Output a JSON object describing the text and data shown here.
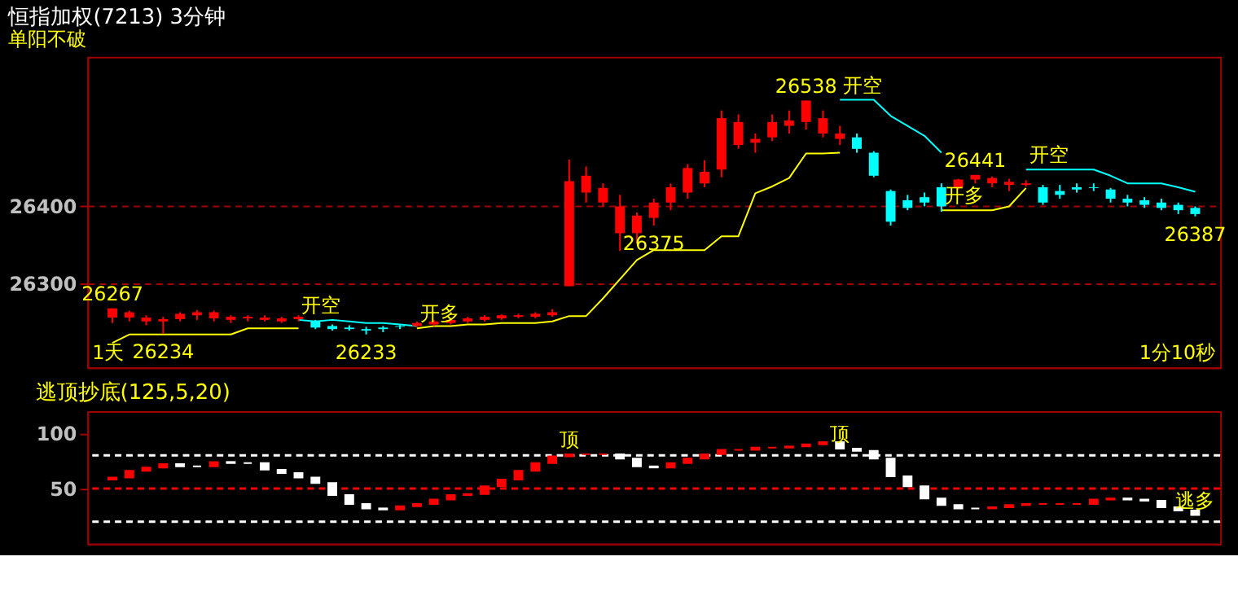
{
  "chart_data": [
    {
      "type": "candlestick",
      "title": "恒指加权(7213)  3分钟",
      "subtitle": "单阳不破",
      "categories": [
        null,
        null,
        null,
        null,
        null,
        null,
        null,
        null,
        null,
        null,
        null,
        null,
        null,
        null,
        null,
        null,
        null,
        null,
        null,
        null,
        null,
        null,
        null,
        null,
        null,
        null,
        null,
        null,
        null,
        null,
        null,
        null,
        null,
        null,
        null,
        null,
        null,
        null,
        null,
        null,
        null,
        null,
        null,
        null,
        null,
        null,
        null,
        null,
        null,
        null,
        null,
        null,
        null,
        null,
        null,
        null,
        null,
        null,
        null,
        null,
        null,
        null,
        null,
        null,
        null
      ],
      "ylim": [
        26190,
        26595
      ],
      "yticks": [
        26300,
        26400
      ],
      "grid": "y",
      "tick_labels": "y",
      "ohlc": [
        [
          26255,
          26267,
          26248,
          26267
        ],
        [
          26255,
          26264,
          26250,
          26262
        ],
        [
          26250,
          26258,
          26245,
          26255
        ],
        [
          26250,
          26256,
          26234,
          26253
        ],
        [
          26253,
          26262,
          26250,
          26260
        ],
        [
          26258,
          26265,
          26252,
          26262
        ],
        [
          26254,
          26264,
          26250,
          26262
        ],
        [
          26252,
          26258,
          26248,
          26256
        ],
        [
          26254,
          26258,
          26250,
          26256
        ],
        [
          26252,
          26258,
          26250,
          26255
        ],
        [
          26250,
          26256,
          26248,
          26254
        ],
        [
          26253,
          26258,
          26250,
          26256
        ],
        [
          26250,
          26252,
          26240,
          26242
        ],
        [
          26244,
          26246,
          26238,
          26240
        ],
        [
          26242,
          26245,
          26238,
          26240
        ],
        [
          26240,
          26243,
          26233,
          26238
        ],
        [
          26242,
          26244,
          26236,
          26240
        ],
        [
          26244,
          26246,
          26240,
          26243
        ],
        [
          26244,
          26250,
          26242,
          26248
        ],
        [
          26246,
          26252,
          26244,
          26250
        ],
        [
          26248,
          26254,
          26246,
          26252
        ],
        [
          26250,
          26256,
          26248,
          26254
        ],
        [
          26252,
          26258,
          26250,
          26256
        ],
        [
          26254,
          26259,
          26252,
          26258
        ],
        [
          26256,
          26260,
          26254,
          26258
        ],
        [
          26256,
          26262,
          26254,
          26260
        ],
        [
          26258,
          26266,
          26256,
          26262
        ],
        [
          26296,
          26461,
          26296,
          26433
        ],
        [
          26418,
          26452,
          26405,
          26440
        ],
        [
          26405,
          26430,
          26400,
          26424
        ],
        [
          26365,
          26415,
          26342,
          26400
        ],
        [
          26365,
          26392,
          26352,
          26388
        ],
        [
          26385,
          26410,
          26375,
          26405
        ],
        [
          26405,
          26430,
          26395,
          26425
        ],
        [
          26418,
          26455,
          26410,
          26450
        ],
        [
          26430,
          26460,
          26425,
          26445
        ],
        [
          26448,
          26525,
          26438,
          26515
        ],
        [
          26480,
          26520,
          26475,
          26510
        ],
        [
          26483,
          26495,
          26470,
          26488
        ],
        [
          26490,
          26520,
          26485,
          26510
        ],
        [
          26505,
          26525,
          26495,
          26512
        ],
        [
          26510,
          26538,
          26500,
          26538
        ],
        [
          26495,
          26525,
          26490,
          26515
        ],
        [
          26488,
          26505,
          26480,
          26495
        ],
        [
          26490,
          26495,
          26470,
          26475
        ],
        [
          26470,
          26472,
          26438,
          26440
        ],
        [
          26420,
          26422,
          26375,
          26380
        ],
        [
          26408,
          26415,
          26395,
          26398
        ],
        [
          26412,
          26418,
          26400,
          26405
        ],
        [
          26425,
          26430,
          26393,
          26400
        ],
        [
          26425,
          26436,
          26422,
          26435
        ],
        [
          26435,
          26441,
          26430,
          26441
        ],
        [
          26430,
          26439,
          26425,
          26437
        ],
        [
          26428,
          26436,
          26420,
          26432
        ],
        [
          26428,
          26434,
          26426,
          26430
        ],
        [
          26425,
          26428,
          26402,
          26405
        ],
        [
          26420,
          26428,
          26410,
          26415
        ],
        [
          26425,
          26430,
          26418,
          26422
        ],
        [
          26425,
          26430,
          26420,
          26424
        ],
        [
          26422,
          26424,
          26405,
          26410
        ],
        [
          26410,
          26415,
          26400,
          26405
        ],
        [
          26408,
          26412,
          26398,
          26402
        ],
        [
          26405,
          26410,
          26395,
          26398
        ],
        [
          26402,
          26405,
          26390,
          26395
        ],
        [
          26398,
          26400,
          26387,
          26390
        ]
      ],
      "colors": [
        "#ff0000",
        "#ff0000",
        "#ff0000",
        "#ff0000",
        "#ff0000",
        "#ff0000",
        "#ff0000",
        "#ff0000",
        "#ff0000",
        "#ff0000",
        "#ff0000",
        "#ff0000",
        "#00ffff",
        "#00ffff",
        "#00ffff",
        "#00ffff",
        "#00ffff",
        "#00ffff",
        "#ff0000",
        "#ff0000",
        "#ff0000",
        "#ff0000",
        "#ff0000",
        "#ff0000",
        "#ff0000",
        "#ff0000",
        "#ff0000",
        "#ff0000",
        "#ff0000",
        "#ff0000",
        "#ff0000",
        "#ff0000",
        "#ff0000",
        "#ff0000",
        "#ff0000",
        "#ff0000",
        "#ff0000",
        "#ff0000",
        "#ff0000",
        "#ff0000",
        "#ff0000",
        "#ff0000",
        "#ff0000",
        "#ff0000",
        "#00ffff",
        "#00ffff",
        "#00ffff",
        "#00ffff",
        "#00ffff",
        "#00ffff",
        "#ff0000",
        "#ff0000",
        "#ff0000",
        "#ff0000",
        "#ff0000",
        "#00ffff",
        "#00ffff",
        "#00ffff",
        "#00ffff",
        "#00ffff",
        "#00ffff",
        "#00ffff",
        "#00ffff",
        "#00ffff",
        "#00ffff"
      ],
      "series": [
        {
          "type": "line",
          "color": "#ffff00",
          "values": [
            26222,
            26233,
            26233,
            26233,
            26233,
            26233,
            26233,
            26233,
            26241,
            26241,
            26241,
            26241,
            null,
            null,
            null,
            null,
            null,
            null,
            26241,
            26244,
            26244,
            26246,
            26246,
            26248,
            26248,
            26248,
            26250,
            26257,
            26257,
            26280,
            26305,
            26330,
            26343,
            26343,
            26343,
            26343,
            26361,
            26361,
            26417,
            26426,
            26437,
            26469,
            26469,
            26470,
            null,
            null,
            null,
            null,
            null,
            26395,
            26395,
            26395,
            26395,
            26400,
            26424,
            null,
            null,
            null,
            null,
            null,
            null,
            null,
            null,
            null,
            null
          ]
        },
        {
          "type": "line",
          "color": "#00ffff",
          "values": [
            null,
            null,
            null,
            null,
            null,
            null,
            null,
            null,
            null,
            null,
            null,
            26252,
            26250,
            26252,
            26250,
            26248,
            26248,
            26246,
            26244,
            null,
            null,
            null,
            null,
            null,
            null,
            null,
            null,
            null,
            null,
            null,
            null,
            null,
            null,
            null,
            null,
            null,
            null,
            null,
            null,
            null,
            null,
            null,
            null,
            26539,
            26539,
            26539,
            26518,
            26505,
            26492,
            26470,
            null,
            null,
            null,
            null,
            26448,
            26448,
            26448,
            26448,
            26448,
            26440,
            26430,
            26430,
            26430,
            26425,
            26419
          ]
        }
      ],
      "annotations": [
        {
          "text": "26538",
          "y": 26538
        },
        {
          "text": "开空",
          "y": 26539
        },
        {
          "text": "26441",
          "y": 26441
        },
        {
          "text": "26375",
          "y": 26375
        },
        {
          "text": "26387",
          "y": 26387
        },
        {
          "text": "26267",
          "y": 26267
        },
        {
          "text": "26234",
          "y": 26234
        },
        {
          "text": "26233",
          "y": 26233
        },
        {
          "text": "开空",
          "y": 26252
        },
        {
          "text": "开多",
          "y": 26241
        },
        {
          "text": "开多",
          "y": 26395
        },
        {
          "text": "开空",
          "y": 26448
        },
        "1天",
        "1分10秒"
      ]
    },
    {
      "type": "bar",
      "title": "逃顶抄底(125,5,20)",
      "categories": [
        null,
        null,
        null,
        null,
        null,
        null,
        null,
        null,
        null,
        null,
        null,
        null,
        null,
        null,
        null,
        null,
        null,
        null,
        null,
        null,
        null,
        null,
        null,
        null,
        null,
        null,
        null,
        null,
        null,
        null,
        null,
        null,
        null,
        null,
        null,
        null,
        null,
        null,
        null,
        null,
        null,
        null,
        null,
        null,
        null,
        null,
        null,
        null,
        null,
        null,
        null,
        null,
        null,
        null,
        null,
        null,
        null,
        null,
        null,
        null,
        null,
        null,
        null,
        null,
        null
      ],
      "ylim": [
        0,
        120
      ],
      "yticks": [
        50,
        100
      ],
      "tick_labels": "y",
      "base": [
        58,
        60,
        66,
        69,
        72,
        70,
        70,
        74,
        73,
        73,
        67,
        64,
        60,
        55,
        44,
        36,
        32,
        31,
        34,
        36,
        40,
        44,
        45,
        52,
        58,
        66,
        73,
        79,
        81,
        81,
        81,
        77,
        70,
        69,
        73,
        77,
        81,
        85,
        85,
        87,
        87,
        88,
        90,
        92,
        86,
        84,
        77,
        61,
        52,
        41,
        35,
        32,
        32,
        33,
        35,
        36,
        36,
        36,
        36,
        40,
        41,
        40,
        39,
        33,
        30
      ],
      "values": [
        2,
        6,
        3,
        3,
        -2,
        0,
        4,
        -1,
        0,
        -6,
        -3,
        -4,
        -5,
        -11,
        -8,
        -4,
        -1,
        3,
        2,
        4,
        4,
        1,
        7,
        6,
        8,
        7,
        6,
        2,
        0,
        0,
        -4,
        -7,
        -1,
        4,
        4,
        4,
        4,
        0,
        2,
        0,
        1,
        2,
        2,
        -6,
        -2,
        -7,
        -16,
        -9,
        -11,
        -6,
        -3,
        0,
        1,
        2,
        1,
        0,
        0,
        0,
        4,
        1,
        -1,
        -1,
        -6,
        -3,
        -4
      ],
      "colors": [
        "#ff0000",
        "#ff0000",
        "#ff0000",
        "#ff0000",
        "#ffffff",
        "#ffffff",
        "#ff0000",
        "#ffffff",
        "#ffffff",
        "#ffffff",
        "#ffffff",
        "#ffffff",
        "#ffffff",
        "#ffffff",
        "#ffffff",
        "#ffffff",
        "#ffffff",
        "#ff0000",
        "#ff0000",
        "#ff0000",
        "#ff0000",
        "#ff0000",
        "#ff0000",
        "#ff0000",
        "#ff0000",
        "#ff0000",
        "#ff0000",
        "#ff0000",
        "#ff0000",
        "#ff0000",
        "#ffffff",
        "#ffffff",
        "#ffffff",
        "#ff0000",
        "#ff0000",
        "#ff0000",
        "#ff0000",
        "#ff0000",
        "#ff0000",
        "#ff0000",
        "#ff0000",
        "#ff0000",
        "#ff0000",
        "#ffffff",
        "#ffffff",
        "#ffffff",
        "#ffffff",
        "#ffffff",
        "#ffffff",
        "#ffffff",
        "#ffffff",
        "#ffffff",
        "#ff0000",
        "#ff0000",
        "#ff0000",
        "#ff0000",
        "#ff0000",
        "#ff0000",
        "#ff0000",
        "#ff0000",
        "#ffffff",
        "#ffffff",
        "#ffffff",
        "#ffffff",
        "#ffffff"
      ],
      "ref_lines": [
        {
          "axis": "y",
          "value": 80,
          "color": "#ffffff",
          "line_style": "dashed"
        },
        {
          "axis": "y",
          "value": 50,
          "color": "#ff0000",
          "line_style": "dashed"
        },
        {
          "axis": "y",
          "value": 20,
          "color": "#ffffff",
          "line_style": "dashed"
        }
      ],
      "annotations": [
        {
          "text": "顶",
          "y": 81
        },
        {
          "text": "顶",
          "y": 86
        },
        {
          "text": "逃多",
          "y": 26
        }
      ]
    }
  ]
}
